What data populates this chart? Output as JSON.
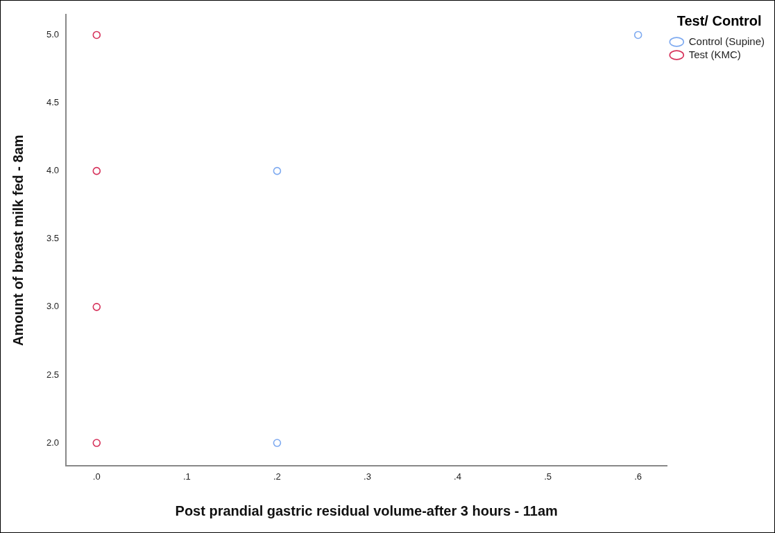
{
  "chart_data": {
    "type": "scatter",
    "xlabel": "Post prandial gastric residual volume-after 3 hours - 11am",
    "ylabel": "Amount of breast milk fed - 8am",
    "legend_title": "Test/ Control",
    "legend": "top right",
    "grid": false,
    "marker": "circle",
    "xlim": [
      -0.034,
      0.632
    ],
    "xticks": [
      {
        "value": 0,
        "label": ".0"
      },
      {
        "value": 0.1,
        "label": ".1"
      },
      {
        "value": 0.2,
        "label": ".2"
      },
      {
        "value": 0.3,
        "label": ".3"
      },
      {
        "value": 0.4,
        "label": ".4"
      },
      {
        "value": 0.5,
        "label": ".5"
      },
      {
        "value": 0.6,
        "label": ".6"
      }
    ],
    "ylim": [
      1.83,
      5.15
    ],
    "yticks": [
      {
        "value": 2,
        "label": "2.0"
      },
      {
        "value": 2.5,
        "label": "2.5"
      },
      {
        "value": 3,
        "label": "3.0"
      },
      {
        "value": 3.5,
        "label": "3.5"
      },
      {
        "value": 4,
        "label": "4.0"
      },
      {
        "value": 4.5,
        "label": "4.5"
      },
      {
        "value": 5,
        "label": "5.0"
      }
    ],
    "series": [
      {
        "name": "Control (Supine)",
        "color": "#7eaaf0",
        "x": [
          0.2,
          0.2,
          0.6
        ],
        "values": [
          4,
          2,
          5
        ]
      },
      {
        "name": "Test (KMC)",
        "color": "#d6315a",
        "x": [
          0,
          0,
          0,
          0
        ],
        "values": [
          5,
          4,
          3,
          2
        ]
      }
    ]
  }
}
